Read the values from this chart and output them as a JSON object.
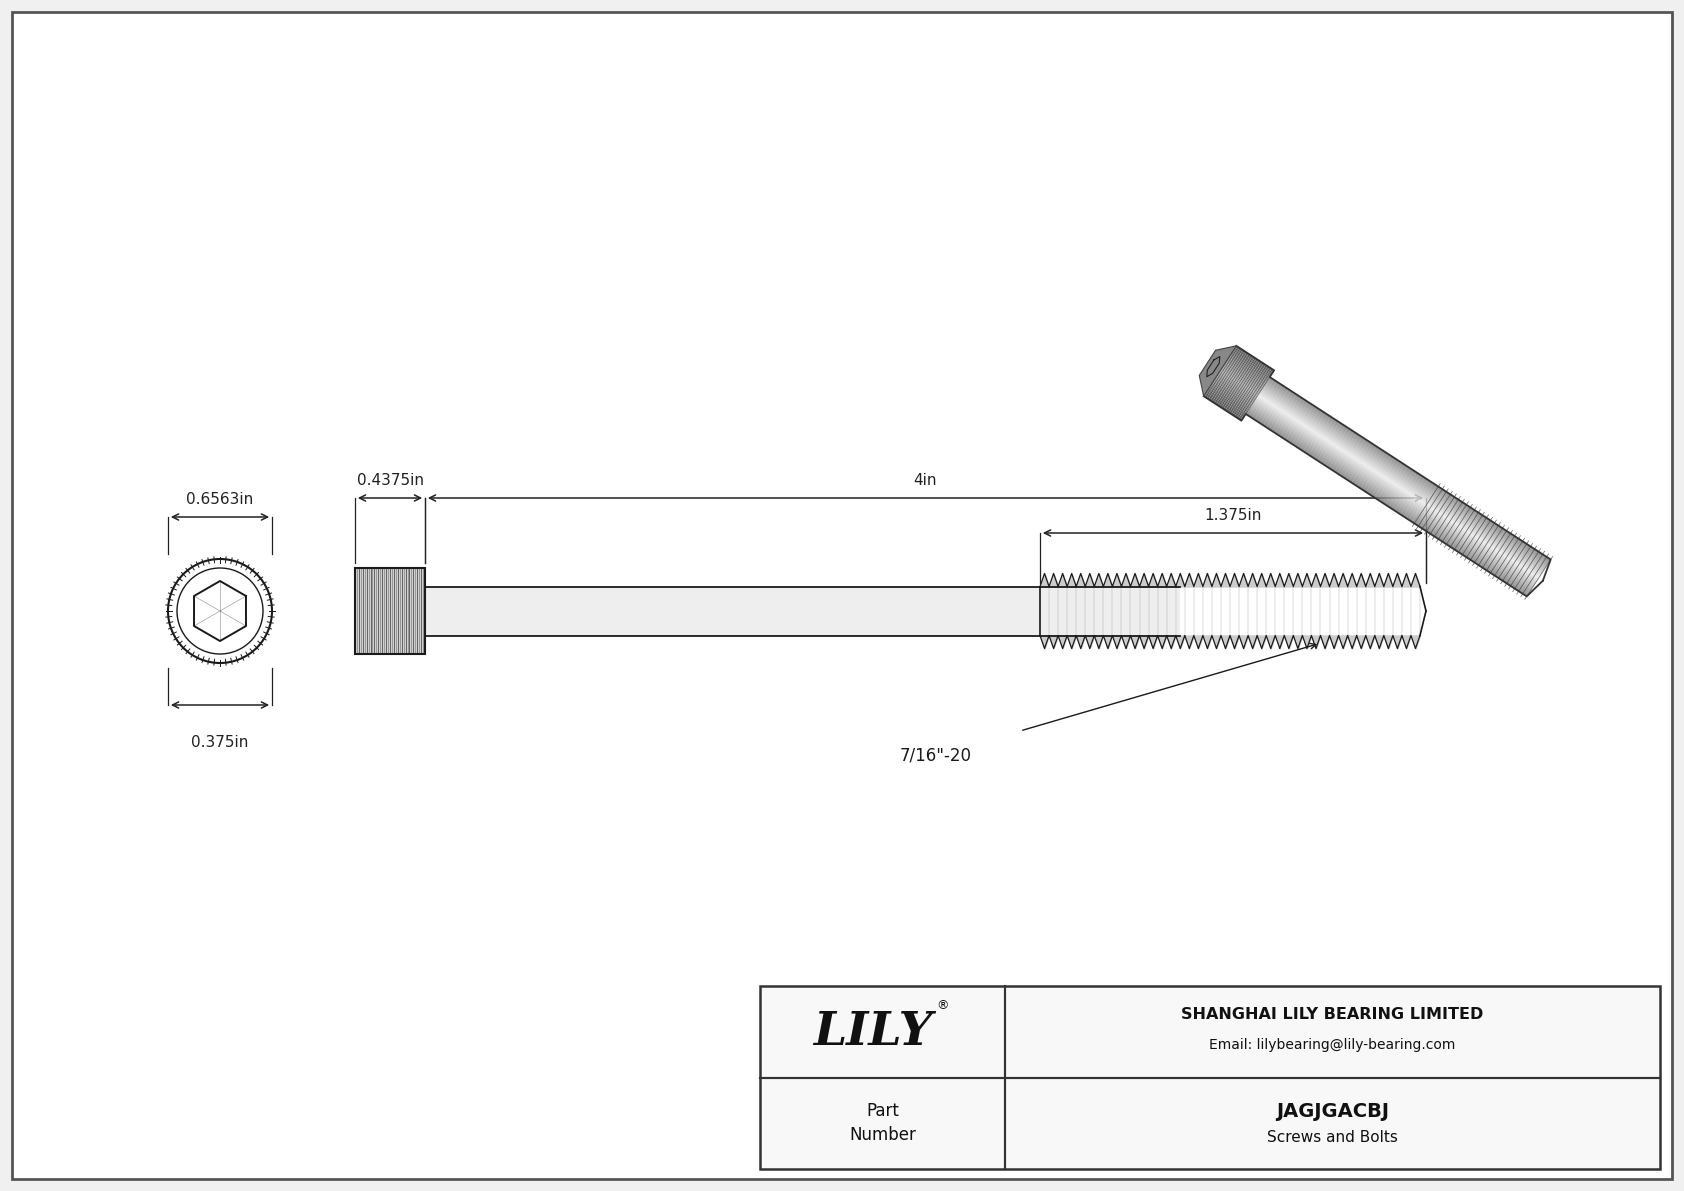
{
  "bg_color": "#f0f0f0",
  "drawing_bg": "#f5f5f5",
  "border_color": "#333333",
  "line_color": "#1a1a1a",
  "dim_color": "#1a1a1a",
  "part_number": "JAGJGACBJ",
  "category": "Screws and Bolts",
  "company": "SHANGHAI LILY BEARING LIMITED",
  "email": "Email: lilybearing@lily-bearing.com",
  "logo_text": "LILY",
  "dim_head_width": "0.6563in",
  "dim_head_height": "0.375in",
  "dim_shank_diameter": "0.4375in",
  "dim_total_length": "4in",
  "dim_thread_length": "1.375in",
  "dim_thread_label": "7/16\"-20"
}
